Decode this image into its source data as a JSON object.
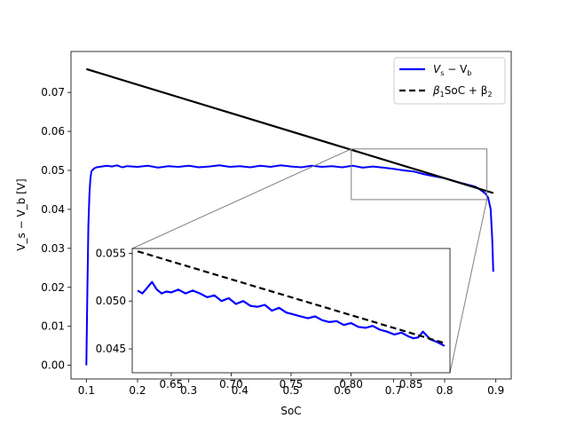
{
  "chart_data": {
    "type": "line",
    "title": "",
    "xlabel": "SoC",
    "ylabel": "V_s − V_b [V]",
    "xlim": [
      0.07,
      0.93
    ],
    "ylim": [
      -0.0035,
      0.0805
    ],
    "xticks": [
      "0.1",
      "0.2",
      "0.3",
      "0.4",
      "0.5",
      "0.6",
      "0.7",
      "0.8",
      "0.9"
    ],
    "yticks": [
      "0.00",
      "0.01",
      "0.02",
      "0.03",
      "0.04",
      "0.05",
      "0.06",
      "0.07"
    ],
    "legend": {
      "position": "top-right",
      "entries": [
        {
          "label_main": "V",
          "label_sub1": "s",
          "label_mid": " − V",
          "label_sub2": "b",
          "label_end": "",
          "color": "#0000ff",
          "dash": "solid"
        },
        {
          "label_main": "β",
          "label_sub1": "1",
          "label_mid": "SoC + β",
          "label_sub2": "2",
          "label_end": "",
          "color": "#000000",
          "dash": "dashed"
        }
      ]
    },
    "series": [
      {
        "id": "measured",
        "color": "#0000ff",
        "x": [
          0.1,
          0.102,
          0.104,
          0.106,
          0.108,
          0.11,
          0.115,
          0.12,
          0.13,
          0.14,
          0.15,
          0.16,
          0.17,
          0.18,
          0.2,
          0.22,
          0.24,
          0.26,
          0.28,
          0.3,
          0.32,
          0.34,
          0.36,
          0.38,
          0.4,
          0.42,
          0.44,
          0.46,
          0.48,
          0.5,
          0.52,
          0.54,
          0.56,
          0.58,
          0.6,
          0.62,
          0.64,
          0.66,
          0.68,
          0.7,
          0.72,
          0.74,
          0.76,
          0.78,
          0.8,
          0.82,
          0.84,
          0.86,
          0.87,
          0.88,
          0.885,
          0.89,
          0.893,
          0.895
        ],
        "y": [
          0.0,
          0.02,
          0.036,
          0.044,
          0.048,
          0.0498,
          0.0505,
          0.0508,
          0.051,
          0.0512,
          0.051,
          0.0513,
          0.0508,
          0.0511,
          0.0509,
          0.0512,
          0.0507,
          0.0511,
          0.0509,
          0.0512,
          0.0508,
          0.051,
          0.0513,
          0.0509,
          0.0511,
          0.0508,
          0.0512,
          0.0509,
          0.0513,
          0.051,
          0.0508,
          0.0512,
          0.0509,
          0.0511,
          0.0508,
          0.0512,
          0.0507,
          0.051,
          0.0507,
          0.0504,
          0.05,
          0.0497,
          0.049,
          0.0485,
          0.048,
          0.0472,
          0.0465,
          0.0458,
          0.045,
          0.044,
          0.043,
          0.04,
          0.032,
          0.024
        ]
      },
      {
        "id": "fit",
        "color": "#000000",
        "x": [
          0.1,
          0.895
        ],
        "y": [
          0.076,
          0.0442
        ]
      }
    ],
    "inset": {
      "xlim": [
        0.6175,
        0.8825
      ],
      "ylim": [
        0.0425,
        0.0555
      ],
      "xticks": [
        "0.65",
        "0.70",
        "0.75",
        "0.80",
        "0.85"
      ],
      "yticks": [
        "0.045",
        "0.050",
        "0.055"
      ],
      "series": [
        {
          "id": "measured",
          "color": "#0000ff",
          "x": [
            0.622,
            0.626,
            0.63,
            0.634,
            0.638,
            0.642,
            0.646,
            0.65,
            0.656,
            0.662,
            0.668,
            0.674,
            0.68,
            0.686,
            0.692,
            0.698,
            0.704,
            0.71,
            0.716,
            0.722,
            0.728,
            0.734,
            0.74,
            0.746,
            0.752,
            0.758,
            0.764,
            0.77,
            0.776,
            0.782,
            0.788,
            0.794,
            0.8,
            0.806,
            0.812,
            0.818,
            0.824,
            0.83,
            0.836,
            0.842,
            0.848,
            0.852,
            0.856,
            0.86,
            0.866,
            0.872,
            0.878
          ],
          "y": [
            0.0511,
            0.0508,
            0.0514,
            0.052,
            0.0512,
            0.0508,
            0.051,
            0.0509,
            0.0512,
            0.0508,
            0.0511,
            0.0508,
            0.0504,
            0.0506,
            0.05,
            0.0503,
            0.0497,
            0.05,
            0.0495,
            0.0494,
            0.0496,
            0.049,
            0.0493,
            0.0488,
            0.0486,
            0.0484,
            0.0482,
            0.0484,
            0.048,
            0.0478,
            0.0479,
            0.0475,
            0.0477,
            0.0473,
            0.0472,
            0.0474,
            0.047,
            0.0468,
            0.0465,
            0.0467,
            0.0463,
            0.0461,
            0.0462,
            0.0468,
            0.046,
            0.0457,
            0.0453
          ]
        },
        {
          "id": "fit",
          "color": "#000000",
          "x": [
            0.622,
            0.878
          ],
          "y": [
            0.0552,
            0.0456
          ]
        }
      ]
    }
  }
}
